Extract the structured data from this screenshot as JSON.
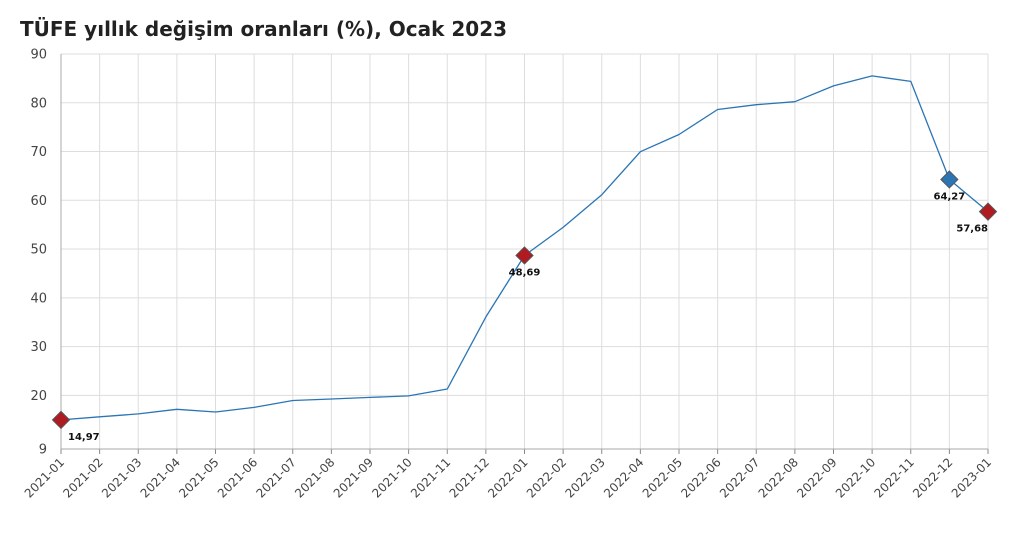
{
  "chart_data": {
    "type": "line",
    "title": "TÜFE yıllık değişim oranları (%), Ocak 2023",
    "xlabel": "",
    "ylabel": "",
    "categories": [
      "2021-01",
      "2021-02",
      "2021-03",
      "2021-04",
      "2021-05",
      "2021-06",
      "2021-07",
      "2021-08",
      "2021-09",
      "2021-10",
      "2021-11",
      "2021-12",
      "2022-01",
      "2022-02",
      "2022-03",
      "2022-04",
      "2022-05",
      "2022-06",
      "2022-07",
      "2022-08",
      "2022-09",
      "2022-10",
      "2022-11",
      "2022-12",
      "2023-01"
    ],
    "series": [
      {
        "values": [
          14.97,
          15.61,
          16.19,
          17.14,
          16.59,
          17.53,
          18.95,
          19.25,
          19.58,
          19.89,
          21.31,
          36.08,
          48.69,
          54.44,
          61.14,
          69.97,
          73.5,
          78.62,
          79.6,
          80.21,
          83.45,
          85.51,
          84.39,
          64.27,
          57.68
        ]
      }
    ],
    "ylim": [
      9,
      90
    ],
    "yticks": [
      "9",
      "20",
      "30",
      "40",
      "50",
      "60",
      "70",
      "80",
      "90"
    ],
    "grid": true,
    "line_color": "#2b75b5",
    "highlight_points": [
      {
        "index": 0,
        "label": "14,97",
        "color": "#b01b22"
      },
      {
        "index": 12,
        "label": "48,69",
        "color": "#b01b22"
      },
      {
        "index": 23,
        "label": "64,27",
        "color": "#2b75b5"
      },
      {
        "index": 24,
        "label": "57,68",
        "color": "#b01b22"
      }
    ]
  }
}
